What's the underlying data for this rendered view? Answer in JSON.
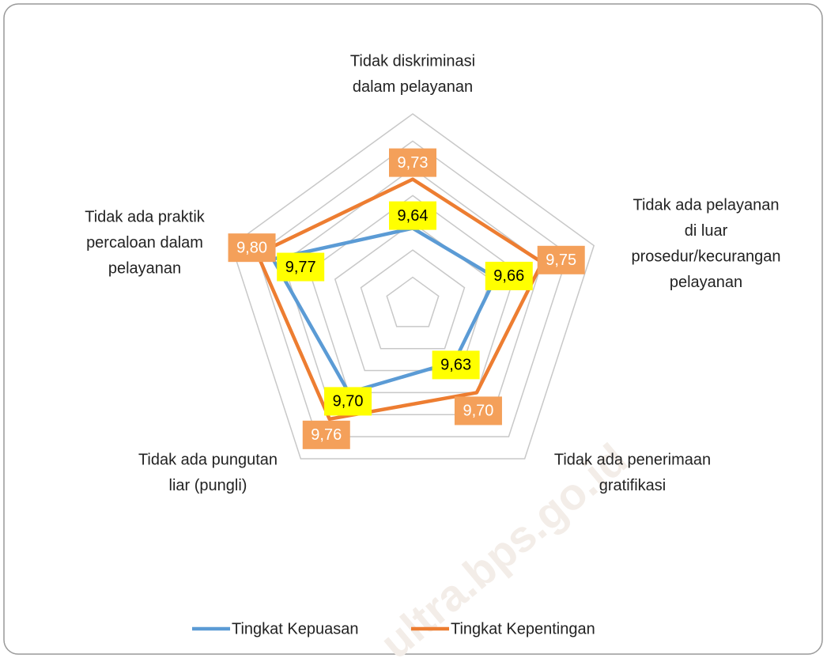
{
  "chart_data": {
    "type": "radar",
    "categories": [
      [
        "Tidak diskriminasi",
        "dalam pelayanan"
      ],
      [
        "Tidak ada pelayanan",
        "di luar",
        "prosedur/kecurangan",
        "pelayanan"
      ],
      [
        "Tidak ada penerimaan",
        "gratifikasi"
      ],
      [
        "Tidak ada pungutan",
        "liar (pungli)"
      ],
      [
        "Tidak ada praktik",
        "percaloan dalam",
        "pelayanan"
      ]
    ],
    "series": [
      {
        "name": "Tingkat Kepuasan",
        "color": "#5b9bd5",
        "label_fill": "#ffff00",
        "values": [
          9.64,
          9.66,
          9.63,
          9.7,
          9.77
        ],
        "value_labels": [
          "9,64",
          "9,66",
          "9,63",
          "9,70",
          "9,77"
        ]
      },
      {
        "name": "Tingkat Kepentingan",
        "color": "#ed7d31",
        "label_fill": "#f4a05a",
        "values": [
          9.73,
          9.75,
          9.7,
          9.76,
          9.8
        ],
        "value_labels": [
          "9,73",
          "9,75",
          "9,70",
          "9,76",
          "9,80"
        ]
      }
    ],
    "rlim": [
      9.5,
      9.85
    ],
    "rticks": [
      9.5,
      9.55,
      9.6,
      9.65,
      9.7,
      9.75,
      9.8,
      9.85
    ],
    "grid": true,
    "legend": "bottom",
    "watermark": "ultra.bps.go.id"
  }
}
